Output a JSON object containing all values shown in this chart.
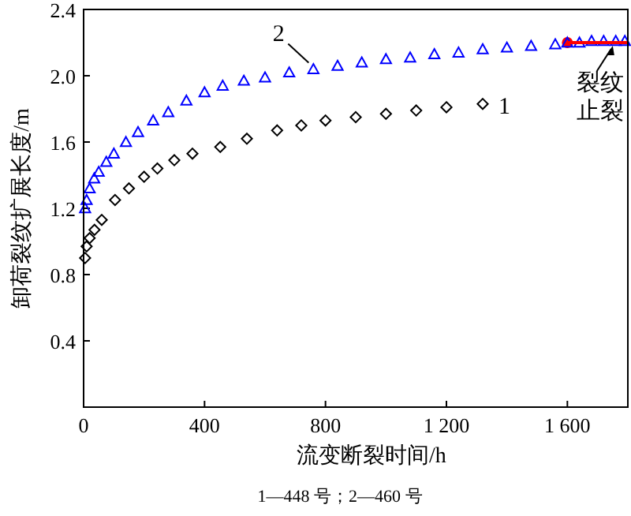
{
  "chart_data": {
    "type": "scatter",
    "xlabel": "流变断裂时间/h",
    "ylabel": "卸荷裂纹扩展长度/m",
    "xlim": [
      0,
      1800
    ],
    "ylim": [
      0,
      2.4
    ],
    "xticks": [
      0,
      400,
      800,
      {
        "value": 1200,
        "label": "1 200"
      },
      {
        "value": 1600,
        "label": "1 600"
      }
    ],
    "yticks": [
      {
        "value": 0.4,
        "label": "0.4"
      },
      {
        "value": 0.8,
        "label": "0.8"
      },
      {
        "value": 1.2,
        "label": "1.2"
      },
      {
        "value": 1.6,
        "label": "1.6"
      },
      {
        "value": 2.0,
        "label": "2.0"
      },
      {
        "value": 2.4,
        "label": "2.4"
      }
    ],
    "grid": false,
    "series": [
      {
        "type": "scatter",
        "color": "#ff0000",
        "marker": "circle",
        "x": [
          1600
        ],
        "values": [
          2.2
        ]
      },
      {
        "name": "1",
        "color": "#000000",
        "marker": "diamond",
        "x": [
          5,
          10,
          20,
          36,
          60,
          104,
          150,
          200,
          244,
          300,
          360,
          452,
          540,
          640,
          720,
          800,
          900,
          1000,
          1100,
          1200,
          1320
        ],
        "values": [
          0.9,
          0.97,
          1.02,
          1.07,
          1.13,
          1.25,
          1.32,
          1.39,
          1.44,
          1.49,
          1.53,
          1.57,
          1.62,
          1.67,
          1.7,
          1.73,
          1.75,
          1.77,
          1.79,
          1.81,
          1.83
        ]
      },
      {
        "name": "2",
        "color": "#0000ff",
        "marker": "triangle",
        "x": [
          5,
          10,
          20,
          35,
          50,
          75,
          100,
          140,
          180,
          230,
          280,
          340,
          400,
          460,
          530,
          600,
          680,
          760,
          840,
          920,
          1000,
          1080,
          1160,
          1240,
          1320,
          1400,
          1480,
          1560,
          1600,
          1640,
          1680,
          1720,
          1760,
          1790
        ],
        "values": [
          1.2,
          1.25,
          1.32,
          1.38,
          1.42,
          1.48,
          1.53,
          1.6,
          1.66,
          1.73,
          1.78,
          1.85,
          1.9,
          1.94,
          1.97,
          1.99,
          2.02,
          2.04,
          2.06,
          2.08,
          2.1,
          2.11,
          2.13,
          2.14,
          2.16,
          2.17,
          2.18,
          2.19,
          2.2,
          2.2,
          2.21,
          2.21,
          2.21,
          2.21
        ]
      },
      {
        "type": "line",
        "color": "#ff0000",
        "marker": "none",
        "x": [
          1600,
          1800
        ],
        "values": [
          2.2,
          2.2
        ]
      }
    ],
    "annotations": [
      {
        "text": "裂纹止裂",
        "x": 1750,
        "y": 2.2
      },
      "1—448 号；2—460 号"
    ]
  }
}
